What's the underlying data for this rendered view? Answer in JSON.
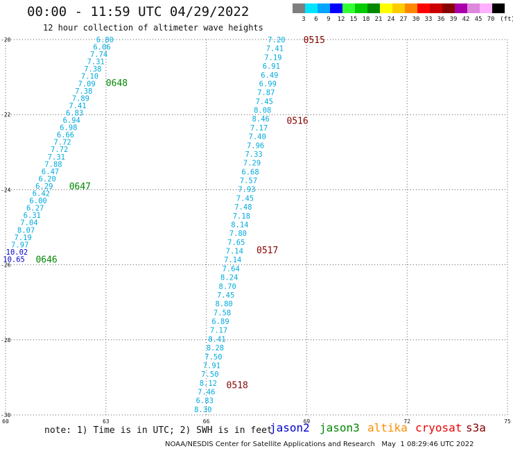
{
  "header": {
    "title": "00:00 - 11:59 UTC 04/29/2022",
    "subtitle": "12 hour collection of altimeter wave heights"
  },
  "legend": {
    "unit": "(ft)",
    "steps": [
      {
        "label": "3",
        "color": "#7f7f7f"
      },
      {
        "label": "6",
        "color": "#00e5ff"
      },
      {
        "label": "9",
        "color": "#00a5ff"
      },
      {
        "label": "12",
        "color": "#0000ff"
      },
      {
        "label": "15",
        "color": "#33ff33"
      },
      {
        "label": "18",
        "color": "#00cc00"
      },
      {
        "label": "21",
        "color": "#008800"
      },
      {
        "label": "24",
        "color": "#ffff00"
      },
      {
        "label": "27",
        "color": "#ffcc00"
      },
      {
        "label": "30",
        "color": "#ff8800"
      },
      {
        "label": "33",
        "color": "#ff0000"
      },
      {
        "label": "36",
        "color": "#cc0000"
      },
      {
        "label": "39",
        "color": "#880000"
      },
      {
        "label": "42",
        "color": "#aa00aa"
      },
      {
        "label": "45",
        "color": "#dd88dd"
      },
      {
        "label": "70",
        "color": "#ffb0ff"
      },
      {
        "label": "",
        "color": "#000000"
      }
    ]
  },
  "footer": {
    "note": "note: 1) Time is in UTC; 2) SWH is in feet",
    "credit": "NOAA/NESDIS Center for Satellite Applications and Research   May  1 08:29:46 UTC 2022",
    "satellites": [
      {
        "name": "jason2",
        "color": "#0000cc"
      },
      {
        "name": "jason3",
        "color": "#008800"
      },
      {
        "name": "altika",
        "color": "#ff8c00"
      },
      {
        "name": "cryosat",
        "color": "#ee0000"
      },
      {
        "name": "s3a",
        "color": "#880000"
      }
    ]
  },
  "chart_data": {
    "type": "scatter",
    "xlim": [
      60,
      75
    ],
    "ylim": [
      -30,
      -20
    ],
    "xticks": [
      "60",
      "63",
      "66",
      "69",
      "72",
      "75"
    ],
    "yticks": [
      "-20",
      "-22",
      "-24",
      "-26",
      "-28",
      "-30"
    ],
    "grid": true,
    "colors": {
      "low": "#00aadd",
      "blue": "#0000cc",
      "green": "#008800",
      "darkred": "#880000"
    },
    "passes": [
      {
        "label": "0648",
        "lon": 63.0,
        "lat": -21.15,
        "color": "#008800"
      },
      {
        "label": "0647",
        "lon": 61.9,
        "lat": -23.9,
        "color": "#008800"
      },
      {
        "label": "0646",
        "lon": 60.9,
        "lat": -25.85,
        "color": "#008800"
      },
      {
        "label": "0515",
        "lon": 68.9,
        "lat": -20.0,
        "color": "#880000"
      },
      {
        "label": "0516",
        "lon": 68.4,
        "lat": -22.15,
        "color": "#880000"
      },
      {
        "label": "0517",
        "lon": 67.5,
        "lat": -25.6,
        "color": "#880000"
      },
      {
        "label": "0518",
        "lon": 66.6,
        "lat": -29.2,
        "color": "#880000"
      }
    ],
    "tracks": [
      {
        "start": {
          "lon": 62.97,
          "lat": -20.0
        },
        "end": {
          "lon": 60.25,
          "lat": -25.85
        },
        "values": [
          "6.80",
          "6.06",
          "7.74",
          "7.31",
          "7.38",
          "7.10",
          "7.09",
          "7.38",
          "7.89",
          "7.41",
          "6.83",
          "6.94",
          "6.98",
          "6.66",
          "7.72",
          "7.72",
          "7.31",
          "7.88",
          "6.47",
          "6.20",
          "6.29",
          "6.42",
          "6.00",
          "6.27",
          "6.31",
          "7.04",
          "8.07",
          "7.19",
          "7.97",
          "10.02",
          "10.65"
        ]
      },
      {
        "start": {
          "lon": 68.1,
          "lat": -20.0
        },
        "end": {
          "lon": 65.9,
          "lat": -29.85
        },
        "values": [
          "7.20",
          "7.41",
          "7.19",
          "6.91",
          "6.49",
          "6.99",
          "7.87",
          "7.45",
          "8.08",
          "8.46",
          "7.17",
          "7.40",
          "7.96",
          "7.33",
          "7.29",
          "6.68",
          "7.57",
          "7.93",
          "7.45",
          "7.48",
          "7.18",
          "8.14",
          "7.80",
          "7.65",
          "7.14",
          "7.14",
          "7.64",
          "8.24",
          "8.70",
          "7.45",
          "8.80",
          "7.58",
          "6.89",
          "7.17",
          "8.41",
          "8.28",
          "7.50",
          "7.91",
          "7.50",
          "8.12",
          "7.46",
          "6.83",
          "8.30"
        ]
      }
    ]
  }
}
